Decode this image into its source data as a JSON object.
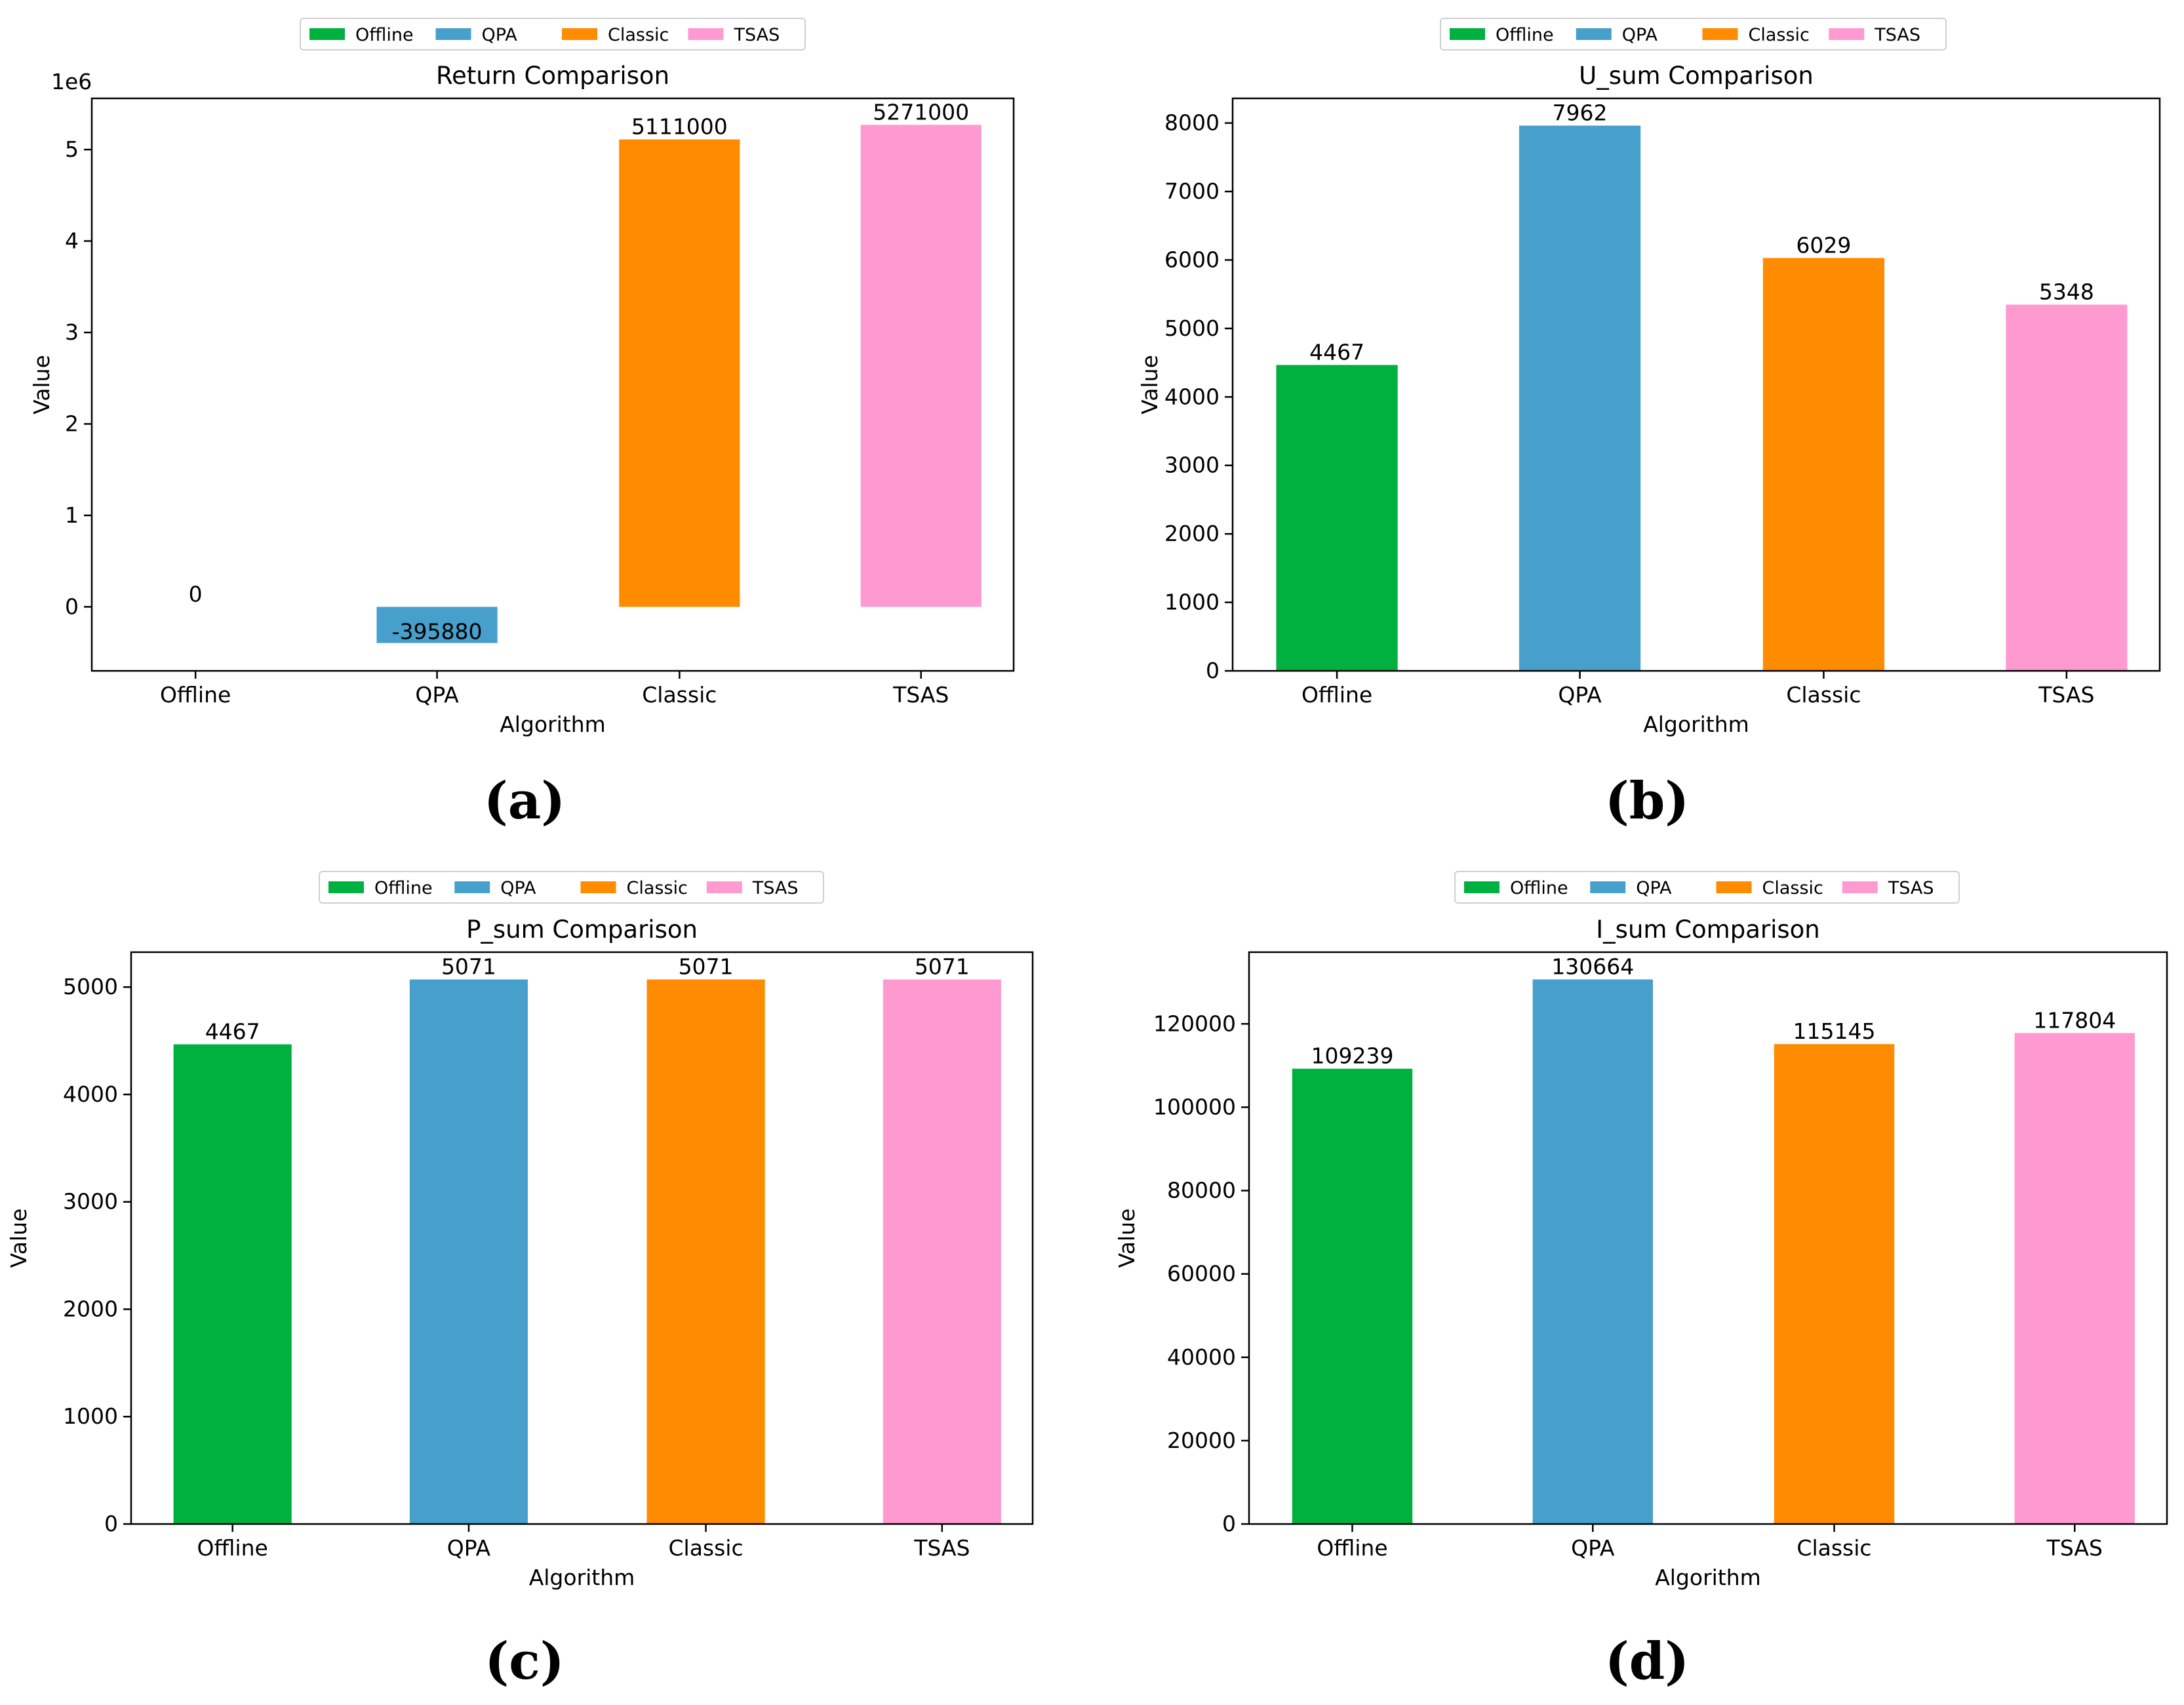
{
  "legend_names": [
    "Offline",
    "QPA",
    "Classic",
    "TSAS"
  ],
  "series_colors": {
    "Offline": "#00b140",
    "QPA": "#47a0cc",
    "Classic": "#ff8b00",
    "TSAS": "#ff9ad0"
  },
  "chart_data": [
    {
      "type": "bar",
      "panel_label": "(a)",
      "title": "Return Comparison",
      "xlabel": "Algorithm",
      "ylabel": "Value",
      "offset_label": "1e6",
      "categories": [
        "Offline",
        "QPA",
        "Classic",
        "TSAS"
      ],
      "values": [
        0,
        -395880,
        5111000,
        5271000
      ],
      "value_labels": [
        "0",
        "-395880",
        "5111000",
        "5271000"
      ],
      "ylim": [
        -700000,
        5560000
      ],
      "yticks": [
        0,
        1000000,
        2000000,
        3000000,
        4000000,
        5000000
      ],
      "ytick_labels": [
        "0",
        "1",
        "2",
        "3",
        "4",
        "5"
      ],
      "legend": "top-center",
      "grid": false
    },
    {
      "type": "bar",
      "panel_label": "(b)",
      "title": "U_sum Comparison",
      "xlabel": "Algorithm",
      "ylabel": "Value",
      "categories": [
        "Offline",
        "QPA",
        "Classic",
        "TSAS"
      ],
      "values": [
        4467,
        7962,
        6029,
        5348
      ],
      "value_labels": [
        "4467",
        "7962",
        "6029",
        "5348"
      ],
      "ylim": [
        0,
        8360
      ],
      "yticks": [
        0,
        1000,
        2000,
        3000,
        4000,
        5000,
        6000,
        7000,
        8000
      ],
      "ytick_labels": [
        "0",
        "1000",
        "2000",
        "3000",
        "4000",
        "5000",
        "6000",
        "7000",
        "8000"
      ],
      "legend": "top-center",
      "grid": false
    },
    {
      "type": "bar",
      "panel_label": "(c)",
      "title": "P_sum Comparison",
      "xlabel": "Algorithm",
      "ylabel": "Value",
      "categories": [
        "Offline",
        "QPA",
        "Classic",
        "TSAS"
      ],
      "values": [
        4467,
        5071,
        5071,
        5071
      ],
      "value_labels": [
        "4467",
        "5071",
        "5071",
        "5071"
      ],
      "ylim": [
        0,
        5325
      ],
      "yticks": [
        0,
        1000,
        2000,
        3000,
        4000,
        5000
      ],
      "ytick_labels": [
        "0",
        "1000",
        "2000",
        "3000",
        "4000",
        "5000"
      ],
      "legend": "top-center",
      "grid": false
    },
    {
      "type": "bar",
      "panel_label": "(d)",
      "title": "I_sum Comparison",
      "xlabel": "Algorithm",
      "ylabel": "Value",
      "categories": [
        "Offline",
        "QPA",
        "Classic",
        "TSAS"
      ],
      "values": [
        109239,
        130664,
        115145,
        117804
      ],
      "value_labels": [
        "109239",
        "130664",
        "115145",
        "117804"
      ],
      "ylim": [
        0,
        137200
      ],
      "yticks": [
        0,
        20000,
        40000,
        60000,
        80000,
        100000,
        120000
      ],
      "ytick_labels": [
        "0",
        "20000",
        "40000",
        "60000",
        "80000",
        "100000",
        "120000"
      ],
      "legend": "top-center",
      "grid": false
    }
  ]
}
